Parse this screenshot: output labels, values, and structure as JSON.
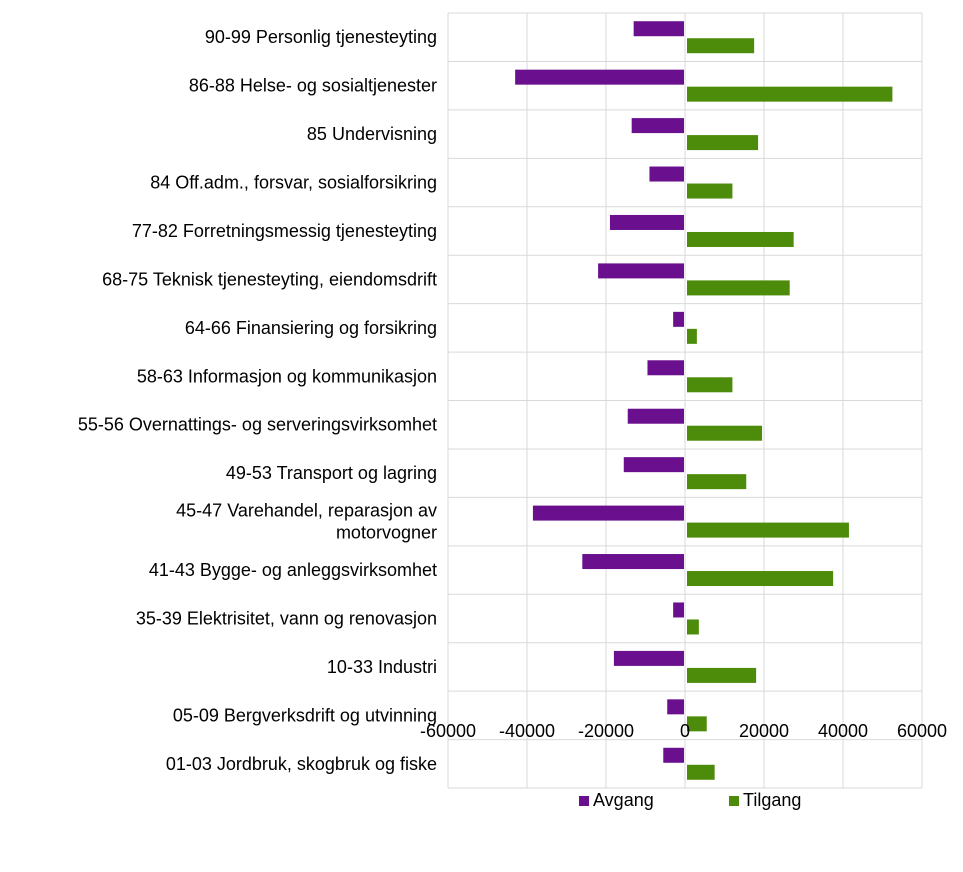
{
  "chart_data": {
    "type": "bar",
    "orientation": "horizontal",
    "categories": [
      "90-99 Personlig tjenesteyting",
      "86-88 Helse- og sosialtjenester",
      "85 Undervisning",
      "84 Off.adm., forsvar, sosialforsikring",
      "77-82 Forretningsmessig tjenesteyting",
      "68-75 Teknisk tjenesteyting, eiendomsdrift",
      "64-66 Finansiering og forsikring",
      "58-63 Informasjon og kommunikasjon",
      "55-56 Overnattings- og serveringsvirksomhet",
      "49-53 Transport og lagring",
      "45-47 Varehandel, reparasjon av motorvogner",
      "41-43 Bygge- og anleggsvirksomhet",
      "35-39 Elektrisitet, vann og renovasjon",
      "10-33 Industri",
      "05-09 Bergverksdrift og utvinning",
      "01-03 Jordbruk, skogbruk og fiske"
    ],
    "category_lines": [
      [
        "90-99 Personlig tjenesteyting"
      ],
      [
        "86-88 Helse- og sosialtjenester"
      ],
      [
        "85 Undervisning"
      ],
      [
        "84 Off.adm., forsvar, sosialforsikring"
      ],
      [
        "77-82 Forretningsmessig tjenesteyting"
      ],
      [
        "68-75 Teknisk tjenesteyting, eiendomsdrift"
      ],
      [
        "64-66 Finansiering og forsikring"
      ],
      [
        "58-63 Informasjon og kommunikasjon"
      ],
      [
        "55-56 Overnattings- og serveringsvirksomhet"
      ],
      [
        "49-53 Transport og lagring"
      ],
      [
        "45-47 Varehandel, reparasjon av",
        "motorvogner"
      ],
      [
        "41-43 Bygge- og anleggsvirksomhet"
      ],
      [
        "35-39 Elektrisitet, vann og renovasjon"
      ],
      [
        "10-33 Industri"
      ],
      [
        "05-09 Bergverksdrift og utvinning"
      ],
      [
        "01-03 Jordbruk, skogbruk og fiske"
      ]
    ],
    "series": [
      {
        "name": "Avgang",
        "color": "#6a0f8e",
        "values": [
          -13000,
          -43000,
          -13500,
          -9000,
          -19000,
          -22000,
          -3000,
          -9500,
          -14500,
          -15500,
          -38500,
          -26000,
          -3000,
          -18000,
          -4500,
          -5500
        ]
      },
      {
        "name": "Tilgang",
        "color": "#4d8c0a",
        "values": [
          17000,
          52000,
          18000,
          11500,
          27000,
          26000,
          2500,
          11500,
          19000,
          15000,
          41000,
          37000,
          3000,
          17500,
          5000,
          7000
        ]
      }
    ],
    "xlim": [
      -60000,
      60000
    ],
    "xticks": [
      -60000,
      -40000,
      -20000,
      0,
      20000,
      40000,
      60000
    ],
    "xtick_labels": [
      "-60000",
      "-40000",
      "-20000",
      "0",
      "20000",
      "40000",
      "60000"
    ],
    "grid": true,
    "legend_position": "bottom"
  }
}
